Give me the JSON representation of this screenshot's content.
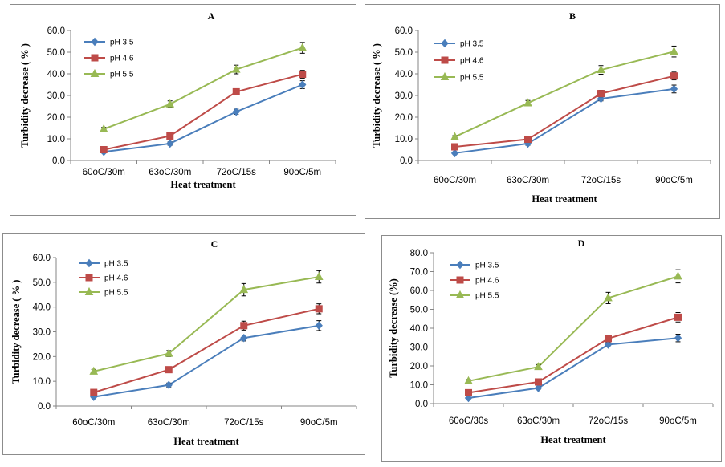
{
  "colors": {
    "ph35": "#4A7EBB",
    "ph46": "#BE4B48",
    "ph55": "#98B954",
    "axis": "#868686"
  },
  "chart_data": [
    {
      "type": "line",
      "title": "A",
      "categories": [
        "60oC/30m",
        "63oC/30m",
        "72oC/15s",
        "90oC/5m"
      ],
      "ylabel": "Turbidity decrease ( % )",
      "xlabel": "Heat treatment",
      "ylim": [
        0,
        60
      ],
      "yticks": [
        "0.0",
        "10.0",
        "20.0",
        "30.0",
        "40.0",
        "50.0",
        "60.0"
      ],
      "series": [
        {
          "name": "pH 3.5",
          "values": [
            4.0,
            7.8,
            22.5,
            35.0
          ],
          "errors": [
            0.6,
            0.8,
            1.2,
            1.8
          ]
        },
        {
          "name": "pH 4.6",
          "values": [
            5.0,
            11.3,
            31.7,
            39.8
          ],
          "errors": [
            0.6,
            1.0,
            1.2,
            1.8
          ]
        },
        {
          "name": "pH 5.5",
          "values": [
            14.5,
            26.0,
            42.0,
            52.0
          ],
          "errors": [
            0.8,
            1.5,
            2.0,
            2.5
          ]
        }
      ]
    },
    {
      "type": "line",
      "title": "B",
      "categories": [
        "60oC/30m",
        "63oC/30m",
        "72oC/15s",
        "90oC/5m"
      ],
      "ylabel": "Turbidity decrease ( % )",
      "xlabel": "Heat treatment",
      "ylim": [
        0,
        60
      ],
      "yticks": [
        "0.0",
        "10.0",
        "20.0",
        "30.0",
        "40.0",
        "50.0",
        "60.0"
      ],
      "series": [
        {
          "name": "pH 3.5",
          "values": [
            3.4,
            7.8,
            28.5,
            33.0
          ],
          "errors": [
            0.5,
            0.8,
            1.0,
            1.8
          ]
        },
        {
          "name": "pH 4.6",
          "values": [
            6.3,
            9.8,
            30.9,
            39.0
          ],
          "errors": [
            0.6,
            0.8,
            1.5,
            1.8
          ]
        },
        {
          "name": "pH 5.5",
          "values": [
            10.9,
            26.5,
            41.8,
            50.3
          ],
          "errors": [
            0.6,
            1.2,
            2.0,
            2.5
          ]
        }
      ]
    },
    {
      "type": "line",
      "title": "C",
      "categories": [
        "60oC/30m",
        "63oC/30m",
        "72oC/15s",
        "90oC/5m"
      ],
      "ylabel": "Turbidity decrease ( % )",
      "xlabel": "Heat treatment",
      "ylim": [
        0,
        60
      ],
      "yticks": [
        "0.0",
        "10.0",
        "20.0",
        "30.0",
        "40.0",
        "50.0",
        "60.0"
      ],
      "series": [
        {
          "name": "pH 3.5",
          "values": [
            3.7,
            8.5,
            27.5,
            32.5
          ],
          "errors": [
            0.5,
            0.8,
            1.2,
            2.0
          ]
        },
        {
          "name": "pH 4.6",
          "values": [
            5.5,
            14.7,
            32.5,
            39.3
          ],
          "errors": [
            0.6,
            1.0,
            1.8,
            2.0
          ]
        },
        {
          "name": "pH 5.5",
          "values": [
            14.0,
            21.2,
            47.0,
            52.2
          ],
          "errors": [
            0.8,
            1.2,
            2.5,
            2.5
          ]
        }
      ]
    },
    {
      "type": "line",
      "title": "D",
      "categories": [
        "60oC/30s",
        "63oC/30m",
        "72oC/15s",
        "90oC/5m"
      ],
      "ylabel": "Turbidity decrease (%)",
      "xlabel": "Heat treatment",
      "ylim": [
        0,
        80
      ],
      "yticks": [
        "0.0",
        "10.0",
        "20.0",
        "30.0",
        "40.0",
        "50.0",
        "60.0",
        "70.0",
        "80.0"
      ],
      "series": [
        {
          "name": "pH 3.5",
          "values": [
            3.0,
            8.3,
            31.3,
            34.8
          ],
          "errors": [
            0.5,
            0.8,
            1.2,
            2.0
          ]
        },
        {
          "name": "pH 4.6",
          "values": [
            5.8,
            11.5,
            34.5,
            45.8
          ],
          "errors": [
            0.6,
            1.0,
            1.5,
            2.5
          ]
        },
        {
          "name": "pH 5.5",
          "values": [
            12.0,
            19.5,
            56.0,
            67.5
          ],
          "errors": [
            0.8,
            1.2,
            3.0,
            3.5
          ]
        }
      ]
    }
  ]
}
